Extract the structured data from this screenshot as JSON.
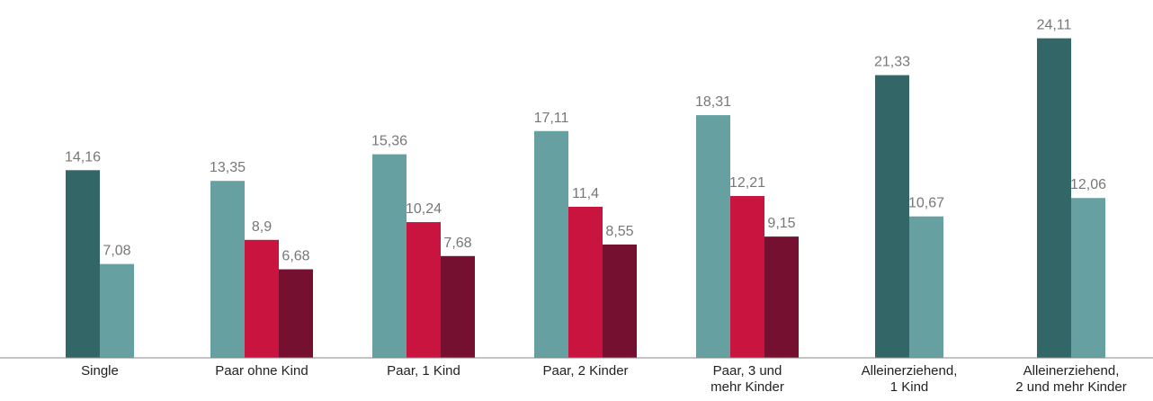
{
  "chart_data": {
    "type": "bar",
    "categories": [
      "Single",
      "Paar ohne Kind",
      "Paar, 1 Kind",
      "Paar, 2 Kinder",
      "Paar, 3 und\nmehr Kinder",
      "Alleinerziehend,\n1 Kind",
      "Alleinerziehend,\n2 und mehr Kinder"
    ],
    "series": [
      {
        "color": "#336666",
        "values": [
          14.16,
          null,
          null,
          null,
          null,
          21.33,
          24.11
        ],
        "value_labels": [
          "14,16",
          null,
          null,
          null,
          null,
          "21,33",
          "24,11"
        ]
      },
      {
        "color": "#66a0a0",
        "values": [
          7.08,
          13.35,
          15.36,
          17.11,
          18.31,
          10.67,
          12.06
        ],
        "value_labels": [
          "7,08",
          "13,35",
          "15,36",
          "17,11",
          "18,31",
          "10,67",
          "12,06"
        ]
      },
      {
        "color": "#c8143f",
        "values": [
          null,
          8.9,
          10.24,
          11.4,
          12.21,
          null,
          null
        ],
        "value_labels": [
          null,
          "8,9",
          "10,24",
          "11,4",
          "12,21",
          null,
          null
        ]
      },
      {
        "color": "#751030",
        "values": [
          null,
          6.68,
          7.68,
          8.55,
          9.15,
          null,
          null
        ],
        "value_labels": [
          null,
          "6,68",
          "7,68",
          "8,55",
          "9,15",
          null,
          null
        ]
      }
    ],
    "ylim": [
      0,
      27
    ]
  }
}
